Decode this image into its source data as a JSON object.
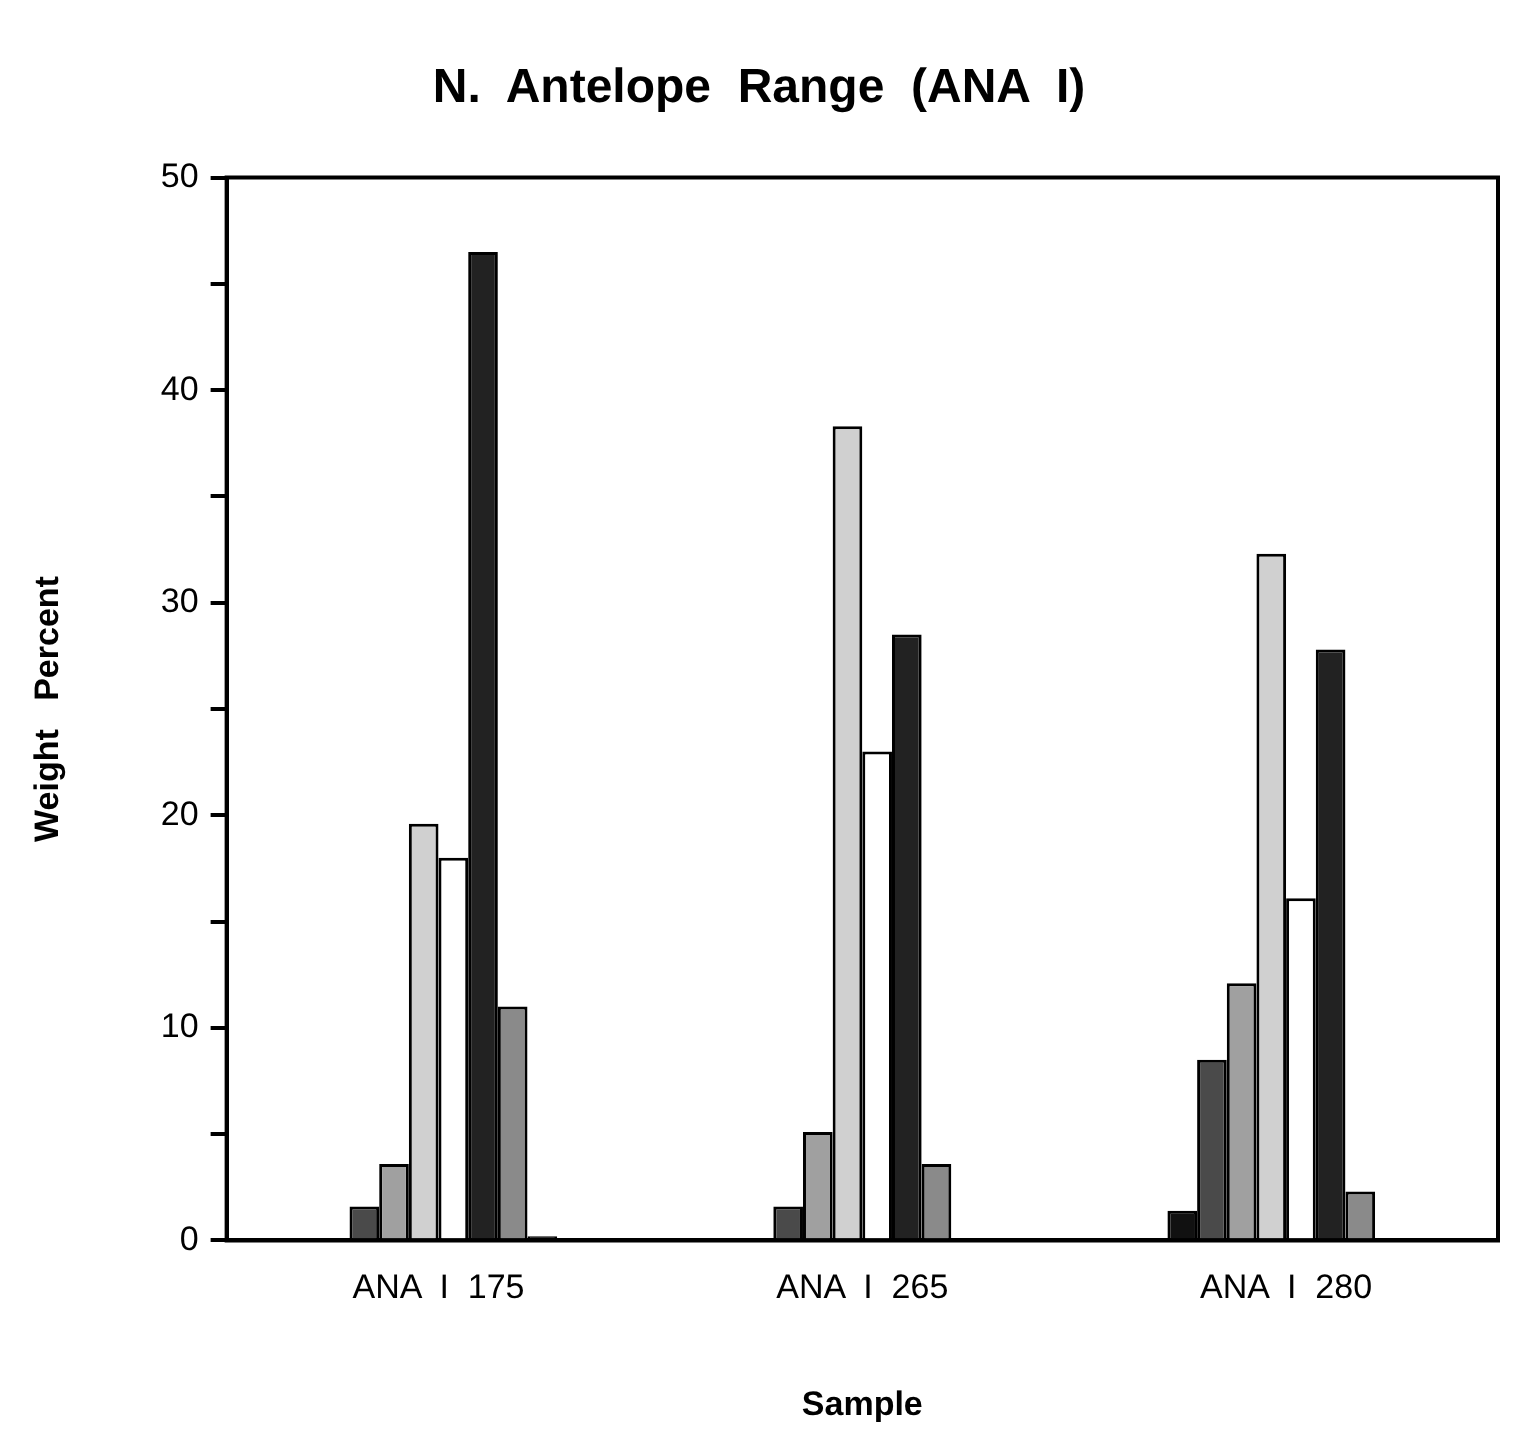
{
  "chart_data": {
    "type": "bar",
    "title": "N.  Antelope  Range  (ANA  I)",
    "xlabel": "Sample",
    "ylabel": "Weight   Percent",
    "categories": [
      "ANA  I  175",
      "ANA  I  265",
      "ANA  I  280"
    ],
    "series": [
      {
        "color": "#111111",
        "values": [
          null,
          null,
          1.4
        ]
      },
      {
        "color": "#4a4a4a",
        "values": [
          1.6,
          1.6,
          8.5
        ]
      },
      {
        "color": "#a0a0a0",
        "values": [
          3.6,
          5.1,
          12.1
        ]
      },
      {
        "color": "#d0d0d0",
        "values": [
          19.6,
          38.3,
          32.3
        ]
      },
      {
        "color": "#ffffff",
        "values": [
          18.0,
          23.0,
          16.1
        ]
      },
      {
        "color": "#222222",
        "values": [
          46.5,
          28.5,
          27.8
        ]
      },
      {
        "color": "#8a8a8a",
        "values": [
          11.0,
          3.6,
          2.3
        ]
      },
      {
        "color": "#000000",
        "values": [
          0.2,
          null,
          null
        ]
      }
    ],
    "ylim": [
      0,
      50
    ],
    "yticks": [
      0,
      {
        "value": 5,
        "label": null
      },
      10,
      {
        "value": 15,
        "label": null
      },
      20,
      {
        "value": 25,
        "label": null
      },
      30,
      {
        "value": 35,
        "label": null
      },
      40,
      {
        "value": 45,
        "label": null
      },
      50
    ],
    "grid": false,
    "legend": false
  }
}
